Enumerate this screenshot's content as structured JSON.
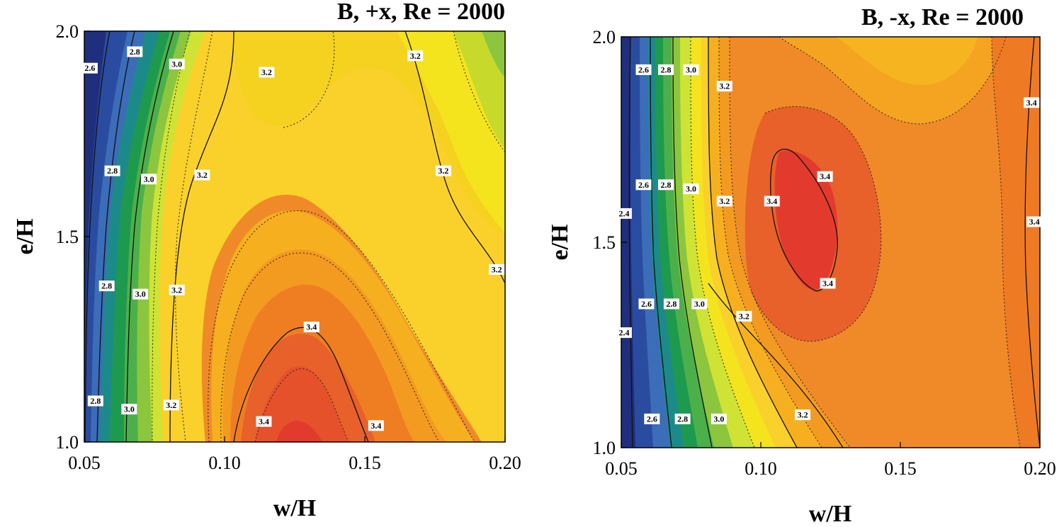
{
  "chart_data": [
    {
      "type": "heatmap",
      "subtype": "filled-contour",
      "title": "B, +x, Re = 2000",
      "xlabel": "w/H",
      "ylabel": "e/H",
      "xlim": [
        0.05,
        0.2
      ],
      "ylim": [
        1.0,
        2.0
      ],
      "x_ticks": [
        "0.05",
        "0.10",
        "0.15",
        "0.20"
      ],
      "y_ticks": [
        "1.0",
        "1.5",
        "2.0"
      ],
      "grid": false,
      "levels": [
        2.6,
        2.8,
        3.0,
        3.2,
        3.4
      ],
      "contour_labels": [
        {
          "text": "2.6",
          "x": 0.052,
          "y": 1.91
        },
        {
          "text": "2.8",
          "x": 0.068,
          "y": 1.95
        },
        {
          "text": "3.0",
          "x": 0.083,
          "y": 1.92
        },
        {
          "text": "3.2",
          "x": 0.115,
          "y": 1.9
        },
        {
          "text": "3.2",
          "x": 0.168,
          "y": 1.94
        },
        {
          "text": "2.8",
          "x": 0.06,
          "y": 1.66
        },
        {
          "text": "3.0",
          "x": 0.073,
          "y": 1.64
        },
        {
          "text": "3.2",
          "x": 0.092,
          "y": 1.65
        },
        {
          "text": "3.2",
          "x": 0.178,
          "y": 1.66
        },
        {
          "text": "2.8",
          "x": 0.058,
          "y": 1.38
        },
        {
          "text": "3.0",
          "x": 0.07,
          "y": 1.36
        },
        {
          "text": "3.2",
          "x": 0.083,
          "y": 1.37
        },
        {
          "text": "3.2",
          "x": 0.197,
          "y": 1.42
        },
        {
          "text": "3.4",
          "x": 0.131,
          "y": 1.28
        },
        {
          "text": "2.8",
          "x": 0.054,
          "y": 1.1
        },
        {
          "text": "3.0",
          "x": 0.066,
          "y": 1.08
        },
        {
          "text": "3.2",
          "x": 0.081,
          "y": 1.09
        },
        {
          "text": "3.4",
          "x": 0.114,
          "y": 1.05
        },
        {
          "text": "3.4",
          "x": 0.154,
          "y": 1.04
        }
      ]
    },
    {
      "type": "heatmap",
      "subtype": "filled-contour",
      "title": "B, -x, Re = 2000",
      "xlabel": "w/H",
      "ylabel": "e/H",
      "xlim": [
        0.05,
        0.2
      ],
      "ylim": [
        1.0,
        2.0
      ],
      "x_ticks": [
        "0.05",
        "0.10",
        "0.15",
        "0.20"
      ],
      "y_ticks": [
        "1.0",
        "1.5",
        "2.0"
      ],
      "grid": false,
      "levels": [
        2.4,
        2.6,
        2.8,
        3.0,
        3.2,
        3.4
      ],
      "contour_labels": [
        {
          "text": "2.6",
          "x": 0.058,
          "y": 1.92
        },
        {
          "text": "2.8",
          "x": 0.066,
          "y": 1.92
        },
        {
          "text": "3.0",
          "x": 0.075,
          "y": 1.92
        },
        {
          "text": "3.2",
          "x": 0.087,
          "y": 1.88
        },
        {
          "text": "3.4",
          "x": 0.197,
          "y": 1.84
        },
        {
          "text": "3.4",
          "x": 0.123,
          "y": 1.66
        },
        {
          "text": "2.6",
          "x": 0.058,
          "y": 1.64
        },
        {
          "text": "2.8",
          "x": 0.066,
          "y": 1.64
        },
        {
          "text": "3.0",
          "x": 0.075,
          "y": 1.63
        },
        {
          "text": "3.2",
          "x": 0.087,
          "y": 1.6
        },
        {
          "text": "3.4",
          "x": 0.104,
          "y": 1.6
        },
        {
          "text": "2.4",
          "x": 0.051,
          "y": 1.57
        },
        {
          "text": "3.4",
          "x": 0.198,
          "y": 1.55
        },
        {
          "text": "3.4",
          "x": 0.124,
          "y": 1.4
        },
        {
          "text": "2.6",
          "x": 0.059,
          "y": 1.35
        },
        {
          "text": "2.8",
          "x": 0.068,
          "y": 1.35
        },
        {
          "text": "3.0",
          "x": 0.078,
          "y": 1.35
        },
        {
          "text": "3.2",
          "x": 0.094,
          "y": 1.32
        },
        {
          "text": "2.4",
          "x": 0.051,
          "y": 1.28
        },
        {
          "text": "2.6",
          "x": 0.061,
          "y": 1.07
        },
        {
          "text": "2.8",
          "x": 0.072,
          "y": 1.07
        },
        {
          "text": "3.0",
          "x": 0.085,
          "y": 1.07
        },
        {
          "text": "3.2",
          "x": 0.115,
          "y": 1.08
        }
      ]
    }
  ]
}
